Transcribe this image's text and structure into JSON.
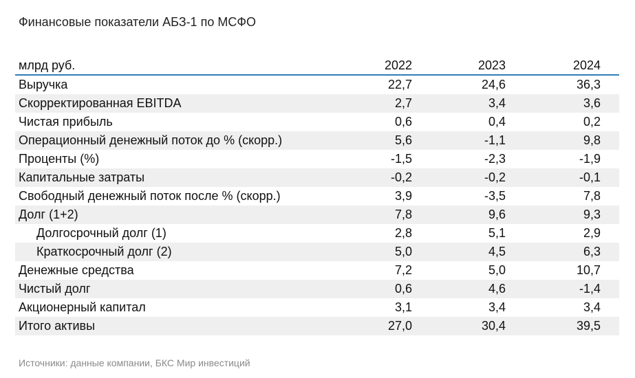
{
  "title": "Финансовые показатели АБЗ-1 по МСФО",
  "table": {
    "unit_label": "млрд руб.",
    "years": [
      "2022",
      "2023",
      "2024"
    ],
    "rows": [
      {
        "label": "Выручка",
        "values": [
          "22,7",
          "24,6",
          "36,3"
        ],
        "indent": false
      },
      {
        "label": "Скорректированная EBITDA",
        "values": [
          "2,7",
          "3,4",
          "3,6"
        ],
        "indent": false
      },
      {
        "label": "Чистая прибыль",
        "values": [
          "0,6",
          "0,4",
          "0,2"
        ],
        "indent": false
      },
      {
        "label": "Операционный денежный поток до % (скорр.)",
        "values": [
          "5,6",
          "-1,1",
          "9,8"
        ],
        "indent": false
      },
      {
        "label": "Проценты (%)",
        "values": [
          "-1,5",
          "-2,3",
          "-1,9"
        ],
        "indent": false
      },
      {
        "label": "Капитальные затраты",
        "values": [
          "-0,2",
          "-0,2",
          "-0,1"
        ],
        "indent": false
      },
      {
        "label": "Свободный денежный поток после % (скорр.)",
        "values": [
          "3,9",
          "-3,5",
          "7,8"
        ],
        "indent": false
      },
      {
        "label": "Долг (1+2)",
        "values": [
          "7,8",
          "9,6",
          "9,3"
        ],
        "indent": false
      },
      {
        "label": "Долгосрочный долг (1)",
        "values": [
          "2,8",
          "5,1",
          "2,9"
        ],
        "indent": true
      },
      {
        "label": "Краткосрочный долг (2)",
        "values": [
          "5,0",
          "4,5",
          "6,3"
        ],
        "indent": true
      },
      {
        "label": "Денежные средства",
        "values": [
          "7,2",
          "5,0",
          "10,7"
        ],
        "indent": false
      },
      {
        "label": "Чистый долг",
        "values": [
          "0,6",
          "4,6",
          "-1,4"
        ],
        "indent": false
      },
      {
        "label": "Акционерный капитал",
        "values": [
          "3,1",
          "3,4",
          "3,4"
        ],
        "indent": false
      },
      {
        "label": "Итого активы",
        "values": [
          "27,0",
          "30,4",
          "39,5"
        ],
        "indent": false
      }
    ]
  },
  "source": "Источники: данные компании, БКС Мир инвестиций",
  "colors": {
    "header_rule": "#2f7db5",
    "stripe": "#efefef",
    "source_text": "#8a8a8a"
  }
}
